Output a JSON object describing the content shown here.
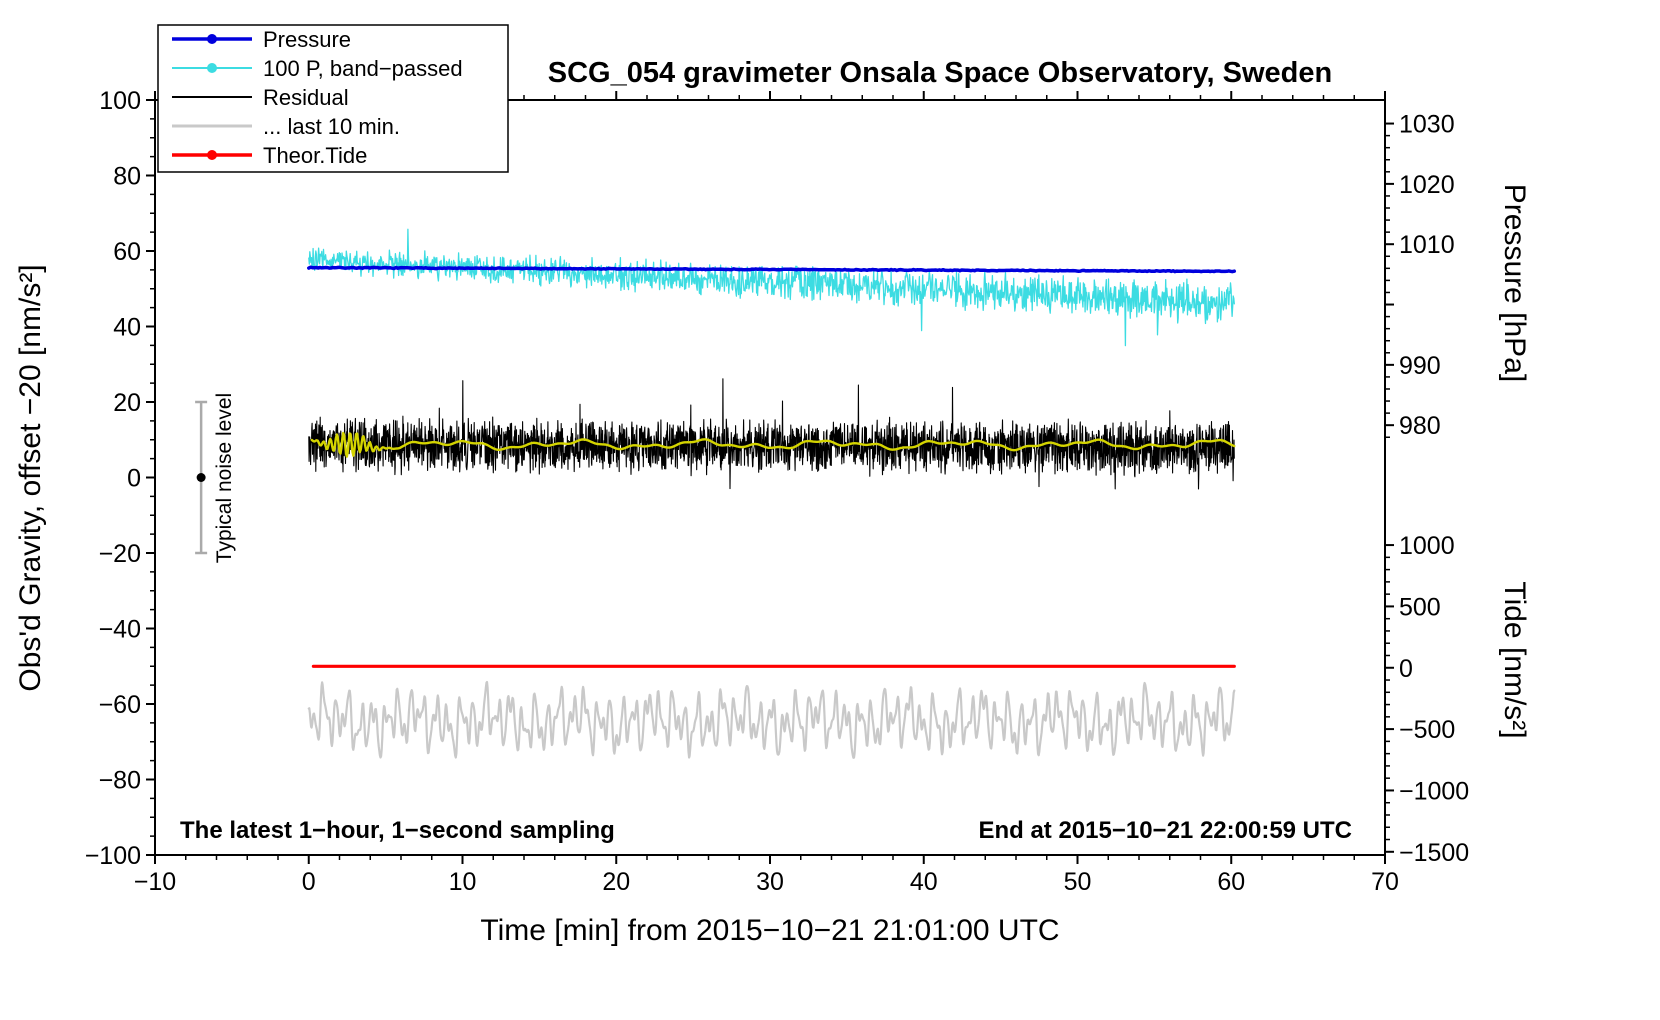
{
  "title": "SCG_054 gravimeter Onsala Space Observatory, Sweden",
  "annotations": {
    "noise_label": "Typical noise level",
    "sampling_note": "The latest 1−hour, 1−second sampling",
    "end_note": "End at 2015−10−21 22:00:59 UTC"
  },
  "legend": {
    "items": [
      {
        "label": "Pressure",
        "color": "#0000dd",
        "width": 3.5,
        "marker": true
      },
      {
        "label": "100 P, band−passed",
        "color": "#3cdce2",
        "width": 2,
        "marker": true
      },
      {
        "label": "Residual",
        "color": "#000000",
        "width": 2,
        "marker": false
      },
      {
        "label": "... last 10 min.",
        "color": "#c9c9c9",
        "width": 3,
        "marker": false
      },
      {
        "label": "Theor.Tide",
        "color": "#ff0000",
        "width": 3.5,
        "marker": true
      }
    ]
  },
  "axes": {
    "x": {
      "label": "Time [min] from 2015−10−21 21:01:00 UTC",
      "min": -10,
      "max": 70,
      "major_ticks": [
        -10,
        0,
        10,
        20,
        30,
        40,
        50,
        60,
        70
      ],
      "minor_step": 2
    },
    "y_left": {
      "label": "Obs'd Gravity, offset −20 [nm/s²]",
      "min": -100,
      "max": 100,
      "major_ticks": [
        -100,
        -80,
        -60,
        -40,
        -20,
        0,
        20,
        40,
        60,
        80,
        100
      ],
      "minor_step": 5
    },
    "y_right_pressure": {
      "label": "Pressure [hPa]",
      "tick_values": [
        1030,
        1020,
        1010,
        1000,
        990,
        980
      ],
      "visible_labels": [
        "1030",
        "1020",
        "1010",
        "990",
        "980"
      ],
      "minor_step": 2,
      "minor_range": [
        978,
        1030
      ],
      "ref_value": 1010,
      "ref_left_units": 61.8,
      "left_units_per_unit": 1.598
    },
    "y_right_tide": {
      "label": "Tide [nm/s²]",
      "tick_values": [
        1000,
        500,
        0,
        -500,
        -1000,
        -1500
      ],
      "minor_step": 100,
      "minor_range": [
        -1500,
        1000
      ],
      "ref_value": 0,
      "ref_left_units": -50.4,
      "left_units_per_unit": 0.0325
    }
  },
  "noise_bar": {
    "x": -7,
    "from": -20,
    "to": 20,
    "dot": 0,
    "color": "#aaaaaa"
  },
  "chart_data": {
    "type": "line",
    "title": "SCG_054 gravimeter Onsala Space Observatory, Sweden",
    "xlabel": "Time [min] from 2015−10−21 21:01:00 UTC",
    "ylabel_left": "Obs'd Gravity, offset −20 [nm/s²]",
    "ylabel_right_upper": "Pressure [hPa]",
    "ylabel_right_lower": "Tide [nm/s²]",
    "xlim": [
      -10,
      70
    ],
    "ylim_left": [
      -100,
      100
    ],
    "x_unit": "minutes since 2015-10-21 21:01:00 UTC",
    "x_range": [
      0,
      60.2
    ],
    "series": [
      {
        "id": "band-passed",
        "name": "100 P, band−passed",
        "color": "#3cdce2",
        "width": 1.3,
        "kind": "noisy",
        "seed": 20,
        "n": 1700,
        "t_range": [
          0,
          60.2
        ],
        "y_start": 57.6,
        "y_end": 46.2,
        "noise": 3.0,
        "noise_end": 5.0,
        "spikes": {
          "up": {
            "prob": 0.012,
            "t_max": 7,
            "min": 4,
            "max": 9
          },
          "down": {
            "prob": 0.007,
            "t_min": 18,
            "min": 6,
            "max": 16
          }
        },
        "summary": "band-passed pressure x100, drifts from ~58 down to ~46 nm/s² with growing noise and downward spikes to ~30 late in the hour"
      },
      {
        "id": "pressure",
        "name": "Pressure",
        "color": "#0000dd",
        "width": 3.5,
        "kind": "noisy",
        "seed": 7,
        "n": 500,
        "t_range": [
          0,
          60.2
        ],
        "y_start": 55.6,
        "y_end": 54.6,
        "noise": 0.12,
        "summary": "nearly constant, ~1006 hPa slowly falling to ~1005.5 hPa"
      },
      {
        "id": "residual",
        "name": "Residual",
        "color": "#000000",
        "width": 1.1,
        "kind": "noisy",
        "seed": 33,
        "n": 3000,
        "t_range": [
          0,
          60.2
        ],
        "y_start": 8.5,
        "y_end": 8.0,
        "noise": 6.3,
        "spikes": {
          "up": {
            "prob": 0.004,
            "min": 5,
            "max": 17
          },
          "down": {
            "prob": 0.005,
            "min": 4,
            "max": 12
          }
        },
        "summary": "1-second residual centered near +8 nm/s², band roughly 0..17, extremes about -9..+28"
      },
      {
        "id": "residual-smoothed",
        "name": "Residual (low-passed)",
        "color": "#d4d400",
        "width": 2.4,
        "kind": "multisine",
        "n": 1000,
        "t_range": [
          0.2,
          60.2
        ],
        "center": 8.7,
        "components": [
          [
            0.7,
            8.3,
            1.1
          ],
          [
            0.5,
            3.7,
            2.3
          ],
          [
            0.3,
            1.6,
            0.6
          ]
        ],
        "burst": {
          "amp": 3.2,
          "t_center": 2.6,
          "t_sigma": 1.4,
          "period": 0.43
        },
        "summary": "smoothed residual ~+9 nm/s² with oscillation burst near minute 1-5"
      },
      {
        "id": "last-10-min",
        "name": "... last 10 min.",
        "color": "#c9c9c9",
        "width": 2.2,
        "kind": "multisine",
        "n": 1600,
        "t_range": [
          0,
          60.2
        ],
        "center": -64.5,
        "components": [
          [
            4.2,
            0.81,
            0.3
          ],
          [
            3.1,
            0.446,
            2.0
          ],
          [
            2.2,
            1.53,
            4.1
          ],
          [
            1.2,
            0.27,
            1.0
          ],
          [
            1.5,
            5.3,
            0.0
          ]
        ],
        "summary": "oscillating trace centered near -65 nm/s², excursions roughly -53..-77"
      },
      {
        "id": "theor-tide",
        "name": "Theor.Tide",
        "color": "#ff0000",
        "width": 3.2,
        "kind": "flat",
        "t_range": [
          0.3,
          60.2
        ],
        "y": -50,
        "summary": "theoretical tide, flat at 0 nm/s² on tide axis (-50 on left axis)"
      }
    ]
  }
}
